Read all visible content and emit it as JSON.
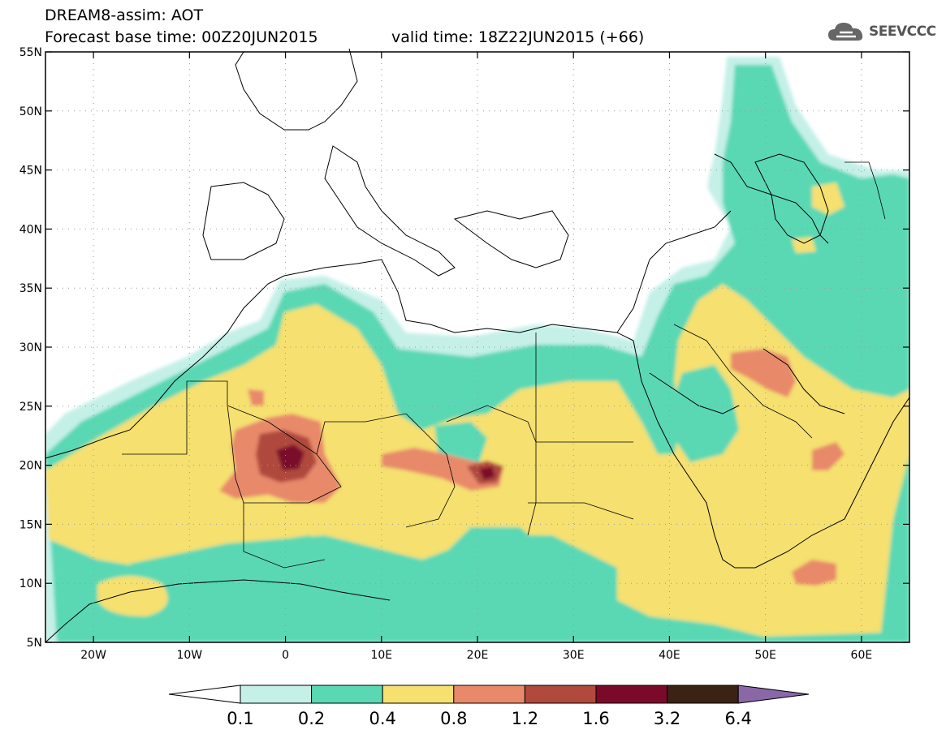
{
  "header": {
    "title": "DREAM8-assim: AOT",
    "base_time": "Forecast base time: 00Z20JUN2015",
    "valid_time": "valid time: 18Z22JUN2015 (+66)"
  },
  "logo": {
    "text": "SEEVCCC",
    "icon": "cloud-icon"
  },
  "map": {
    "lon_range": [
      -25,
      65
    ],
    "lat_range": [
      5,
      55
    ],
    "lat_ticks": [
      {
        "value": 55,
        "label": "55N"
      },
      {
        "value": 50,
        "label": "50N"
      },
      {
        "value": 45,
        "label": "45N"
      },
      {
        "value": 40,
        "label": "40N"
      },
      {
        "value": 35,
        "label": "35N"
      },
      {
        "value": 30,
        "label": "30N"
      },
      {
        "value": 25,
        "label": "25N"
      },
      {
        "value": 20,
        "label": "20N"
      },
      {
        "value": 15,
        "label": "15N"
      },
      {
        "value": 10,
        "label": "10N"
      },
      {
        "value": 5,
        "label": "5N"
      }
    ],
    "lon_ticks": [
      {
        "value": -20,
        "label": "20W"
      },
      {
        "value": -10,
        "label": "10W"
      },
      {
        "value": 0,
        "label": "0"
      },
      {
        "value": 10,
        "label": "10E"
      },
      {
        "value": 20,
        "label": "20E"
      },
      {
        "value": 30,
        "label": "30E"
      },
      {
        "value": 40,
        "label": "40E"
      },
      {
        "value": 50,
        "label": "50E"
      },
      {
        "value": 60,
        "label": "60E"
      }
    ]
  },
  "colorbar": {
    "labels": [
      "0.1",
      "0.2",
      "0.4",
      "0.8",
      "1.2",
      "1.6",
      "3.2",
      "6.4"
    ],
    "colors": [
      "#ffffff",
      "#c5f0e8",
      "#5ad8b4",
      "#f5e070",
      "#e8896a",
      "#b04a3c",
      "#7a0a2a",
      "#3a2215",
      "#8a68a8"
    ]
  }
}
